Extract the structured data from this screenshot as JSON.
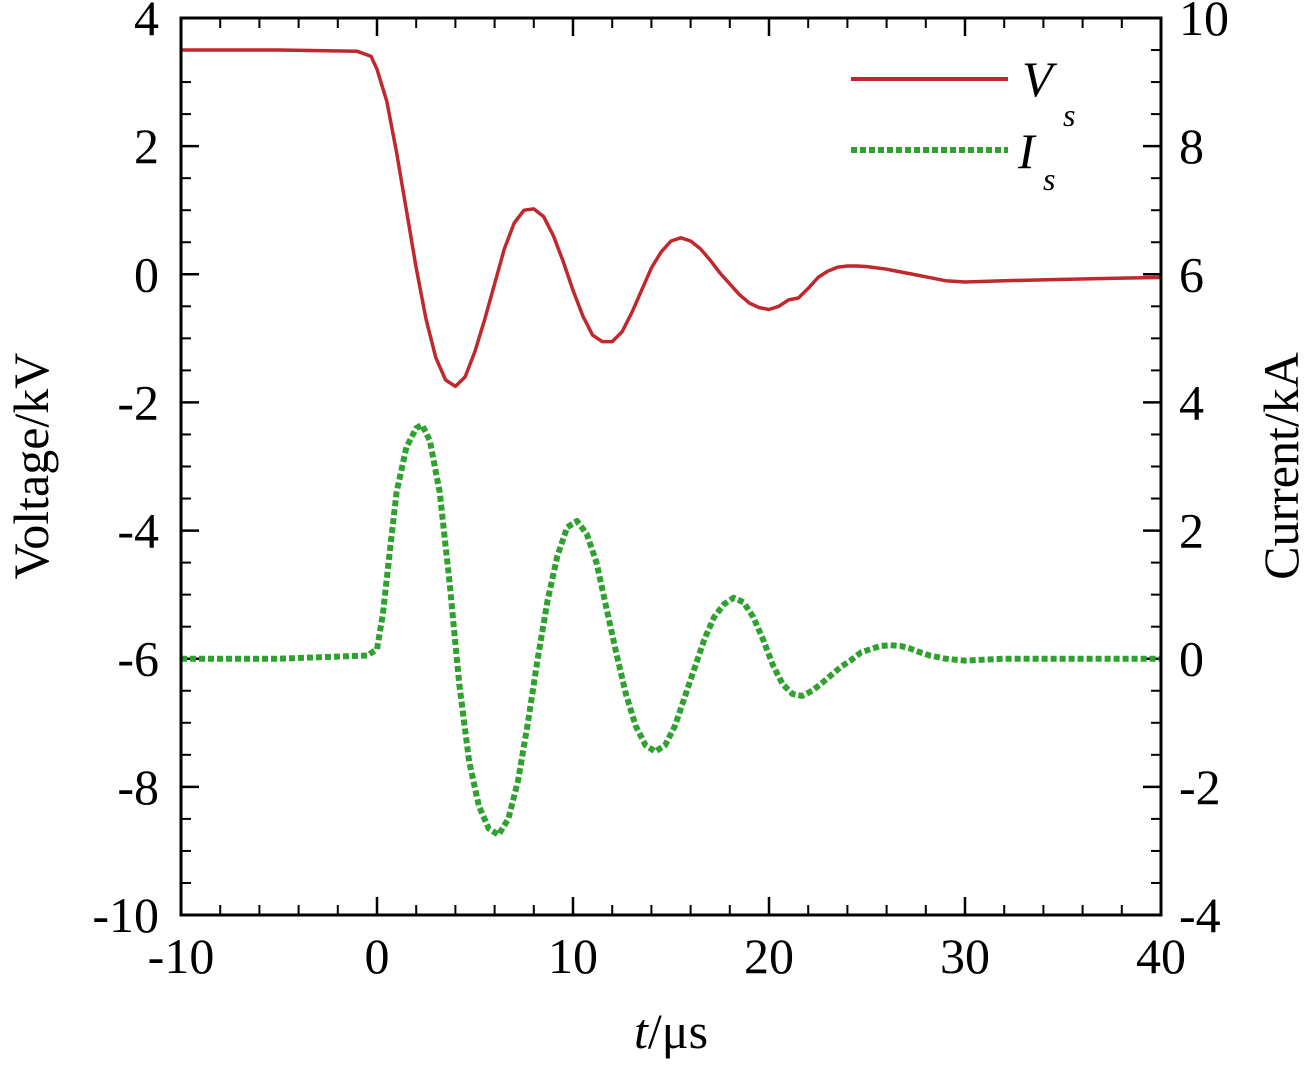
{
  "chart_data": {
    "type": "line",
    "xlabel_italic": "t",
    "xlabel_unit": "/μs",
    "ylabel_left": "Voltage/kV",
    "ylabel_right": "Current/kA",
    "xlim": [
      -10,
      40
    ],
    "ylim_left": [
      -10,
      4
    ],
    "ylim_right": [
      -4,
      10
    ],
    "x_ticks": [
      "-10",
      "0",
      "10",
      "20",
      "30",
      "40"
    ],
    "y_left_ticks": [
      "4",
      "2",
      "0",
      "-2",
      "-4",
      "-6",
      "-8",
      "-10"
    ],
    "y_right_ticks": [
      "10",
      "8",
      "6",
      "4",
      "2",
      "0",
      "-2",
      "-4"
    ],
    "grid": false,
    "legend_position": "top-right",
    "series": [
      {
        "name": "V",
        "name_sub": "s",
        "axis": "left",
        "color": "#c0282d",
        "dash": "solid",
        "x": [
          -10,
          -5,
          -1,
          -0.3,
          0,
          0.5,
          1,
          1.5,
          2,
          2.5,
          3,
          3.5,
          4,
          4.5,
          5,
          5.5,
          6,
          6.5,
          7,
          7.5,
          8,
          8.5,
          9,
          9.5,
          10,
          10.5,
          11,
          11.5,
          12,
          12.5,
          13,
          13.5,
          14,
          14.5,
          15,
          15.5,
          16,
          16.5,
          17,
          17.5,
          18,
          18.5,
          19,
          19.5,
          20,
          20.5,
          21,
          21.5,
          22,
          22.5,
          23,
          23.5,
          24,
          24.5,
          25,
          25.5,
          26,
          26.5,
          27,
          27.5,
          28,
          29,
          30,
          32,
          35,
          38,
          40
        ],
        "y": [
          3.5,
          3.5,
          3.48,
          3.4,
          3.2,
          2.7,
          1.9,
          1.0,
          0.1,
          -0.7,
          -1.3,
          -1.65,
          -1.75,
          -1.6,
          -1.2,
          -0.7,
          -0.15,
          0.4,
          0.8,
          1.0,
          1.02,
          0.9,
          0.6,
          0.2,
          -0.25,
          -0.65,
          -0.95,
          -1.05,
          -1.05,
          -0.9,
          -0.6,
          -0.25,
          0.1,
          0.35,
          0.52,
          0.57,
          0.52,
          0.4,
          0.22,
          0.02,
          -0.15,
          -0.32,
          -0.45,
          -0.52,
          -0.55,
          -0.5,
          -0.4,
          -0.37,
          -0.22,
          -0.05,
          0.05,
          0.11,
          0.13,
          0.13,
          0.12,
          0.1,
          0.08,
          0.05,
          0.02,
          -0.01,
          -0.04,
          -0.1,
          -0.12,
          -0.1,
          -0.08,
          -0.06,
          -0.05
        ]
      },
      {
        "name": "I",
        "name_sub": "s",
        "axis": "right",
        "color": "#2ea12e",
        "dash": "dotted",
        "x": [
          -10,
          -5,
          -0.5,
          0,
          0.3,
          0.7,
          1,
          1.5,
          2,
          2.3,
          2.7,
          3.2,
          3.7,
          4.2,
          4.7,
          5.2,
          5.7,
          6.2,
          6.7,
          7.2,
          7.7,
          8.2,
          8.7,
          9.2,
          9.7,
          10.2,
          10.7,
          11.2,
          11.7,
          12.2,
          12.7,
          13.2,
          13.7,
          14.2,
          14.7,
          15.2,
          15.7,
          16.2,
          16.7,
          17.2,
          17.7,
          18.2,
          18.7,
          19.2,
          19.7,
          20.2,
          20.7,
          21.2,
          21.7,
          22.2,
          22.7,
          23.2,
          23.7,
          24.2,
          24.7,
          25.2,
          25.7,
          26.2,
          26.7,
          27.2,
          27.7,
          28.2,
          29,
          30,
          32,
          35,
          38,
          40
        ],
        "y": [
          0,
          0,
          0.05,
          0.15,
          0.7,
          1.8,
          2.6,
          3.3,
          3.6,
          3.65,
          3.4,
          2.6,
          1.2,
          -0.4,
          -1.6,
          -2.3,
          -2.65,
          -2.75,
          -2.5,
          -1.9,
          -1.0,
          0.0,
          0.9,
          1.6,
          2.05,
          2.15,
          1.95,
          1.5,
          0.8,
          0.1,
          -0.55,
          -1.05,
          -1.35,
          -1.45,
          -1.35,
          -1.05,
          -0.6,
          -0.15,
          0.3,
          0.65,
          0.85,
          0.95,
          0.88,
          0.65,
          0.3,
          -0.1,
          -0.4,
          -0.55,
          -0.58,
          -0.5,
          -0.38,
          -0.25,
          -0.12,
          -0.02,
          0.1,
          0.15,
          0.2,
          0.21,
          0.2,
          0.16,
          0.1,
          0.05,
          0.0,
          -0.03,
          0.0,
          0.0,
          0.0,
          0.0
        ]
      }
    ]
  }
}
